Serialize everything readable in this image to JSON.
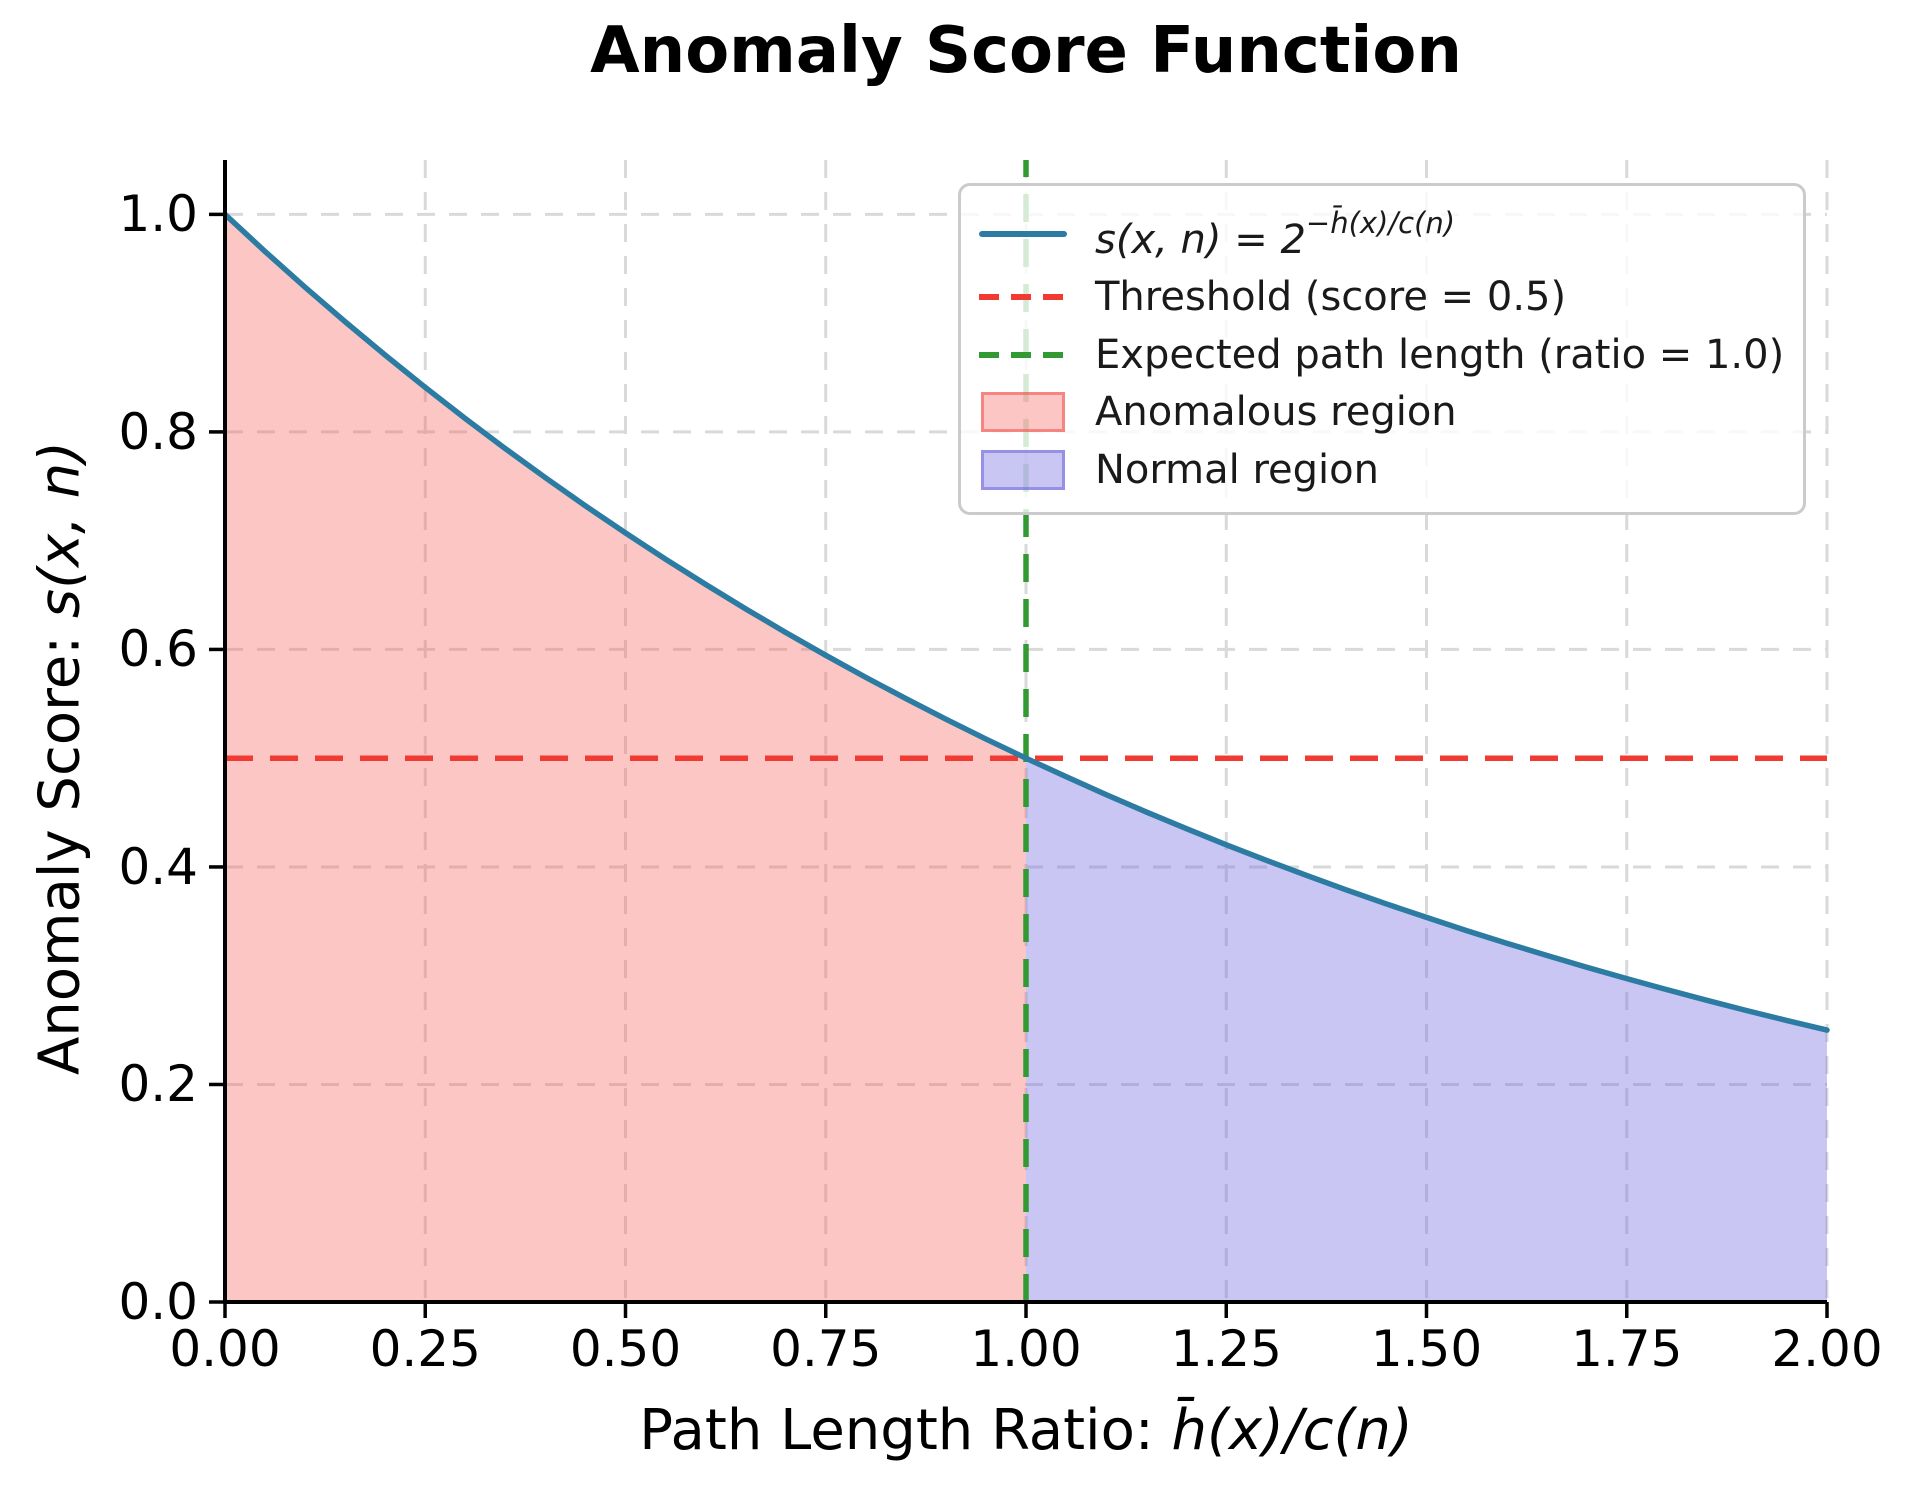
{
  "title": "Anomaly Score Function",
  "axis": {
    "xlabel_prefix": "Path Length Ratio: ",
    "xlabel_math": "h̄(x)/c(n)",
    "ylabel_prefix": "Anomaly Score: ",
    "ylabel_math": "s(x, n)"
  },
  "legend": {
    "formula_base": "s(x, n) = 2",
    "formula_sup": "−h̄(x)/c(n)",
    "threshold": "Threshold (score = 0.5)",
    "expected": "Expected path length (ratio = 1.0)",
    "anomalous": "Anomalous region",
    "normal": "Normal region"
  },
  "chart_data": {
    "type": "line",
    "title": "Anomaly Score Function",
    "xlabel": "Path Length Ratio: h̄(x)/c(n)",
    "ylabel": "Anomaly Score: s(x, n)",
    "xlim": [
      0,
      2.0
    ],
    "ylim": [
      0,
      1.05
    ],
    "grid": true,
    "legend_position": "upper right",
    "xticks": [
      0,
      0.25,
      0.5,
      0.75,
      1.0,
      1.25,
      1.5,
      1.75,
      2.0
    ],
    "xtick_labels": [
      "0.00",
      "0.25",
      "0.50",
      "0.75",
      "1.00",
      "1.25",
      "1.50",
      "1.75",
      "2.00"
    ],
    "yticks": [
      0,
      0.2,
      0.4,
      0.6,
      0.8,
      1.0
    ],
    "ytick_labels": [
      "0.0",
      "0.2",
      "0.4",
      "0.6",
      "0.8",
      "1.0"
    ],
    "curve": {
      "name": "s(x, n) = 2^(−h̄(x)/c(n))",
      "color": "#2b7ba3",
      "x": [
        0.0,
        0.05,
        0.1,
        0.15,
        0.2,
        0.25,
        0.3,
        0.35,
        0.4,
        0.45,
        0.5,
        0.55,
        0.6,
        0.65,
        0.7,
        0.75,
        0.8,
        0.85,
        0.9,
        0.95,
        1.0,
        1.05,
        1.1,
        1.15,
        1.2,
        1.25,
        1.3,
        1.35,
        1.4,
        1.45,
        1.5,
        1.55,
        1.6,
        1.65,
        1.7,
        1.75,
        1.8,
        1.85,
        1.9,
        1.95,
        2.0
      ],
      "y": [
        1.0,
        0.9659,
        0.933,
        0.9013,
        0.8706,
        0.8409,
        0.8123,
        0.7846,
        0.7579,
        0.732,
        0.7071,
        0.683,
        0.6598,
        0.6373,
        0.6156,
        0.5946,
        0.5743,
        0.5548,
        0.5359,
        0.5176,
        0.5,
        0.483,
        0.4665,
        0.4506,
        0.4353,
        0.4204,
        0.4061,
        0.3923,
        0.3789,
        0.366,
        0.3536,
        0.3415,
        0.3299,
        0.3187,
        0.3078,
        0.2973,
        0.2872,
        0.2774,
        0.2679,
        0.2588,
        0.25
      ]
    },
    "threshold_line": {
      "label": "Threshold (score = 0.5)",
      "y": 0.5,
      "color": "#f03a32",
      "style": "dashed"
    },
    "expected_line": {
      "label": "Expected path length (ratio = 1.0)",
      "x": 1.0,
      "color": "#339933",
      "style": "dashed"
    },
    "regions": [
      {
        "label": "Anomalous region",
        "x_start": 0.0,
        "x_end": 1.0,
        "fill": "rgba(244,106,101,0.38)"
      },
      {
        "label": "Normal region",
        "x_start": 1.0,
        "x_end": 2.0,
        "fill": "rgba(122,113,224,0.40)"
      }
    ]
  }
}
